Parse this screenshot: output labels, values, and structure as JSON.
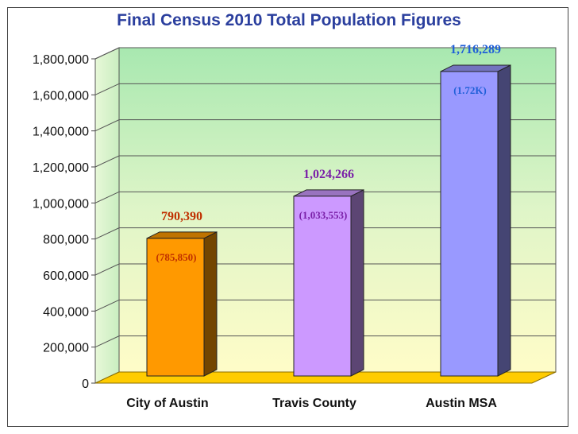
{
  "chart_data": {
    "type": "bar",
    "title": "Final Census 2010 Total Population Figures",
    "categories": [
      "City of Austin",
      "Travis County",
      "Austin MSA"
    ],
    "values": [
      790390,
      1024266,
      1716289
    ],
    "value_labels": [
      "790,390",
      "1,024,266",
      "1,716,289"
    ],
    "secondary_labels": [
      "(785,850)",
      "(1,033,553)",
      "(1.72K)"
    ],
    "bar_colors": [
      "#ff9900",
      "#cc99ff",
      "#9999ff"
    ],
    "label_colors": [
      "#c03000",
      "#7a1fa8",
      "#1f5fd8"
    ],
    "ylim": [
      0,
      1800000
    ],
    "y_ticks": [
      0,
      200000,
      400000,
      600000,
      800000,
      1000000,
      1200000,
      1400000,
      1600000,
      1800000
    ],
    "y_tick_labels": [
      "0",
      "200,000",
      "400,000",
      "600,000",
      "800,000",
      "1,000,000",
      "1,200,000",
      "1,400,000",
      "1,600,000",
      "1,800,000"
    ],
    "xlabel": "",
    "ylabel": "",
    "grid": true
  }
}
